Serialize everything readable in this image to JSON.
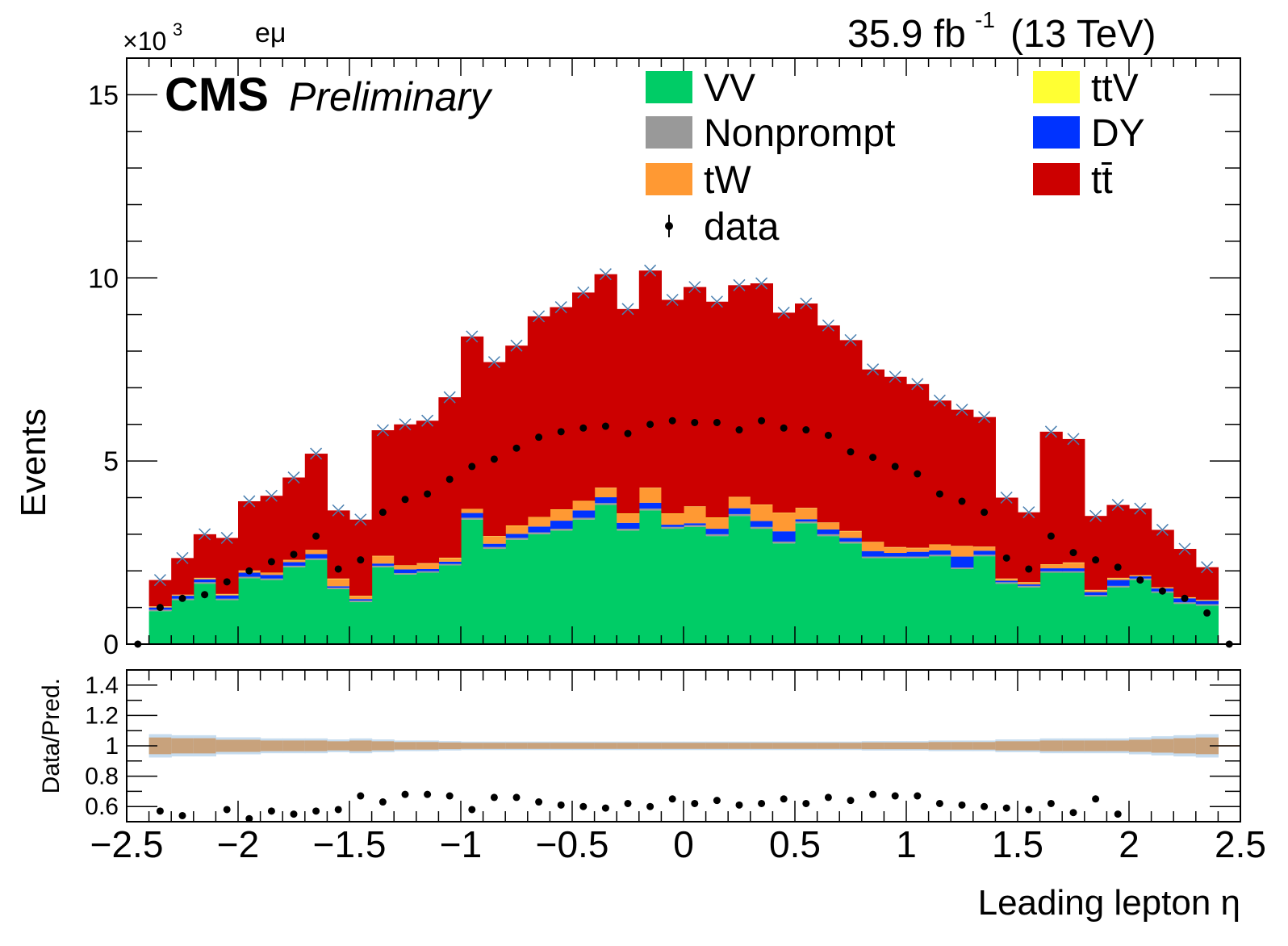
{
  "header": {
    "exponent_text": "×10",
    "exponent_power": "3",
    "channel": "eμ",
    "lumi": "35.9 fb",
    "lumi_power": "-1",
    "energy": "(13 TeV)",
    "cms": "CMS",
    "preliminary": "Preliminary"
  },
  "legend": [
    {
      "label": "VV",
      "color": "#00cc66",
      "kind": "box"
    },
    {
      "label": "ttV",
      "color": "#ffff33",
      "kind": "box"
    },
    {
      "label": "Nonprompt",
      "color": "#999999",
      "kind": "box"
    },
    {
      "label": "DY",
      "color": "#0033ff",
      "kind": "box"
    },
    {
      "label": "tW",
      "color": "#ff9933",
      "kind": "box"
    },
    {
      "label": "tt̄",
      "color": "#cc0000",
      "kind": "box"
    },
    {
      "label": "data",
      "color": "#000000",
      "kind": "marker"
    }
  ],
  "chart_data": [
    {
      "type": "bar",
      "stacked": true,
      "xlabel": "Leading lepton η",
      "ylabel": "Events",
      "y_scale_note": "×10^3",
      "xlim": [
        -2.5,
        2.5
      ],
      "ylim": [
        0,
        16
      ],
      "yticks": [
        0,
        5,
        10,
        15
      ],
      "xticks": [
        -2.5,
        -2,
        -1.5,
        -1,
        -0.5,
        0,
        0.5,
        1,
        1.5,
        2,
        2.5
      ],
      "xtick_labels": [
        "−2.5",
        "−2",
        "−1.5",
        "−1",
        "−0.5",
        "0",
        "0.5",
        "1",
        "1.5",
        "2",
        "2.5"
      ],
      "bin_edges": [
        -2.4,
        -2.3,
        -2.2,
        -2.1,
        -2.0,
        -1.9,
        -1.8,
        -1.7,
        -1.6,
        -1.5,
        -1.4,
        -1.3,
        -1.2,
        -1.1,
        -1.0,
        -0.9,
        -0.8,
        -0.7,
        -0.6,
        -0.5,
        -0.4,
        -0.3,
        -0.2,
        -0.1,
        0.0,
        0.1,
        0.2,
        0.3,
        0.4,
        0.5,
        0.6,
        0.7,
        0.8,
        0.9,
        1.0,
        1.1,
        1.2,
        1.3,
        1.4,
        1.5,
        1.6,
        1.7,
        1.8,
        1.9,
        2.0,
        2.1,
        2.2,
        2.3,
        2.4
      ],
      "series": [
        {
          "name": "VV",
          "color": "#00cc66",
          "values": [
            0.9,
            1.2,
            1.65,
            1.2,
            1.8,
            1.75,
            2.1,
            2.3,
            1.5,
            1.15,
            2.1,
            1.9,
            1.95,
            2.15,
            3.4,
            2.6,
            2.85,
            3.0,
            3.1,
            3.4,
            3.8,
            3.1,
            3.65,
            3.15,
            3.2,
            2.95,
            3.5,
            3.15,
            2.75,
            3.3,
            2.95,
            2.75,
            2.35,
            2.35,
            2.35,
            2.4,
            2.05,
            2.4,
            1.65,
            1.55,
            1.95,
            1.95,
            1.3,
            1.55,
            1.75,
            1.4,
            1.1,
            1.05
          ]
        },
        {
          "name": "Nonprompt",
          "color": "#999999",
          "values": [
            0.04,
            0.04,
            0.04,
            0.04,
            0.04,
            0.04,
            0.04,
            0.04,
            0.04,
            0.04,
            0.04,
            0.04,
            0.04,
            0.04,
            0.05,
            0.05,
            0.05,
            0.05,
            0.05,
            0.05,
            0.05,
            0.05,
            0.05,
            0.05,
            0.05,
            0.05,
            0.05,
            0.05,
            0.05,
            0.05,
            0.05,
            0.05,
            0.04,
            0.04,
            0.04,
            0.04,
            0.04,
            0.04,
            0.04,
            0.04,
            0.04,
            0.04,
            0.04,
            0.04,
            0.04,
            0.04,
            0.04,
            0.04
          ]
        },
        {
          "name": "DY",
          "color": "#0033ff",
          "values": [
            0.06,
            0.08,
            0.08,
            0.09,
            0.11,
            0.1,
            0.1,
            0.12,
            0.04,
            0.04,
            0.06,
            0.1,
            0.06,
            0.06,
            0.13,
            0.09,
            0.11,
            0.16,
            0.22,
            0.2,
            0.16,
            0.16,
            0.16,
            0.06,
            0.05,
            0.15,
            0.16,
            0.16,
            0.28,
            0.06,
            0.13,
            0.1,
            0.15,
            0.1,
            0.13,
            0.12,
            0.3,
            0.11,
            0.04,
            0.04,
            0.08,
            0.08,
            0.08,
            0.16,
            0.06,
            0.08,
            0.11,
            0.09
          ]
        },
        {
          "name": "tW",
          "color": "#ff9933",
          "values": [
            0.02,
            0.02,
            0.03,
            0.03,
            0.05,
            0.05,
            0.05,
            0.1,
            0.2,
            0.08,
            0.2,
            0.1,
            0.15,
            0.1,
            0.1,
            0.2,
            0.22,
            0.25,
            0.3,
            0.25,
            0.25,
            0.25,
            0.4,
            0.3,
            0.45,
            0.3,
            0.3,
            0.44,
            0.5,
            0.3,
            0.18,
            0.18,
            0.24,
            0.15,
            0.1,
            0.15,
            0.28,
            0.1,
            0.05,
            0.05,
            0.1,
            0.15,
            0.05,
            0.05,
            0.02,
            0.02,
            0.02,
            0.02
          ]
        },
        {
          "name": "ttV",
          "color": "#ffff33",
          "values": [
            0.01,
            0.01,
            0.01,
            0.01,
            0.01,
            0.01,
            0.01,
            0.01,
            0.01,
            0.01,
            0.01,
            0.01,
            0.01,
            0.01,
            0.01,
            0.01,
            0.01,
            0.01,
            0.01,
            0.01,
            0.01,
            0.01,
            0.01,
            0.01,
            0.01,
            0.01,
            0.01,
            0.01,
            0.01,
            0.01,
            0.01,
            0.01,
            0.01,
            0.01,
            0.01,
            0.01,
            0.01,
            0.01,
            0.01,
            0.01,
            0.01,
            0.01,
            0.01,
            0.01,
            0.01,
            0.01,
            0.01,
            0.01
          ]
        },
        {
          "name": "tt̄",
          "color": "#cc0000",
          "values": [
            0.72,
            1.0,
            1.19,
            1.53,
            1.89,
            2.1,
            2.25,
            2.63,
            1.86,
            2.08,
            3.43,
            3.85,
            3.89,
            4.38,
            4.71,
            4.75,
            4.91,
            5.48,
            5.52,
            5.69,
            5.83,
            5.58,
            5.93,
            5.83,
            5.99,
            5.89,
            5.78,
            6.04,
            5.46,
            5.58,
            5.38,
            5.21,
            4.71,
            4.65,
            4.47,
            3.93,
            3.72,
            3.54,
            2.21,
            1.91,
            3.62,
            3.37,
            2.02,
            1.99,
            1.82,
            1.57,
            1.32,
            0.89
          ]
        }
      ],
      "data_points": {
        "x": [
          -2.45,
          -2.35,
          -2.25,
          -2.15,
          -2.05,
          -1.95,
          -1.85,
          -1.75,
          -1.65,
          -1.55,
          -1.45,
          -1.35,
          -1.25,
          -1.15,
          -1.05,
          -0.95,
          -0.85,
          -0.75,
          -0.65,
          -0.55,
          -0.45,
          -0.35,
          -0.25,
          -0.15,
          -0.05,
          0.05,
          0.15,
          0.25,
          0.35,
          0.45,
          0.55,
          0.65,
          0.75,
          0.85,
          0.95,
          1.05,
          1.15,
          1.25,
          1.35,
          1.45,
          1.55,
          1.65,
          1.75,
          1.85,
          1.95,
          2.05,
          2.15,
          2.25,
          2.35,
          2.45
        ],
        "y": [
          0.0,
          1.0,
          1.25,
          1.35,
          1.7,
          2.0,
          2.25,
          2.45,
          2.95,
          2.05,
          2.3,
          3.6,
          3.95,
          4.1,
          4.5,
          4.85,
          5.05,
          5.35,
          5.65,
          5.8,
          5.9,
          5.95,
          5.75,
          6.0,
          6.1,
          6.05,
          6.05,
          5.85,
          6.1,
          5.9,
          5.85,
          5.7,
          5.25,
          5.1,
          4.85,
          4.65,
          4.1,
          3.9,
          3.6,
          2.35,
          2.05,
          2.95,
          2.5,
          2.3,
          2.1,
          1.75,
          1.45,
          1.25,
          0.85,
          0.0
        ]
      }
    },
    {
      "type": "scatter",
      "xlabel": "",
      "ylabel": "Data/Pred.",
      "xlim": [
        -2.5,
        2.5
      ],
      "ylim": [
        0.5,
        1.5
      ],
      "yticks": [
        0.6,
        0.8,
        1,
        1.2,
        1.4
      ],
      "ytick_labels": [
        "0.6",
        "0.8",
        "1",
        "1.2",
        "1.4"
      ],
      "band_center": 1.0,
      "band_halfwidth": [
        0.055,
        0.05,
        0.05,
        0.04,
        0.04,
        0.035,
        0.035,
        0.035,
        0.03,
        0.035,
        0.03,
        0.025,
        0.025,
        0.022,
        0.02,
        0.02,
        0.02,
        0.02,
        0.02,
        0.02,
        0.02,
        0.02,
        0.02,
        0.02,
        0.02,
        0.02,
        0.02,
        0.02,
        0.02,
        0.02,
        0.02,
        0.02,
        0.022,
        0.022,
        0.022,
        0.025,
        0.025,
        0.025,
        0.03,
        0.03,
        0.035,
        0.035,
        0.035,
        0.035,
        0.04,
        0.045,
        0.05,
        0.055
      ],
      "ratio_points": {
        "x": [
          -2.35,
          -2.25,
          -2.05,
          -1.95,
          -1.85,
          -1.75,
          -1.65,
          -1.55,
          -1.45,
          -1.35,
          -1.25,
          -1.15,
          -1.05,
          -0.95,
          -0.85,
          -0.75,
          -0.65,
          -0.55,
          -0.45,
          -0.35,
          -0.25,
          -0.15,
          -0.05,
          0.05,
          0.15,
          0.25,
          0.35,
          0.45,
          0.55,
          0.65,
          0.75,
          0.85,
          0.95,
          1.05,
          1.15,
          1.25,
          1.35,
          1.45,
          1.55,
          1.65,
          1.75,
          1.85,
          1.95,
          2.05
        ],
        "y": [
          0.57,
          0.54,
          0.58,
          0.52,
          0.57,
          0.55,
          0.57,
          0.58,
          0.67,
          0.63,
          0.68,
          0.68,
          0.67,
          0.58,
          0.66,
          0.66,
          0.63,
          0.61,
          0.6,
          0.59,
          0.62,
          0.6,
          0.65,
          0.62,
          0.64,
          0.61,
          0.62,
          0.65,
          0.62,
          0.66,
          0.64,
          0.68,
          0.67,
          0.67,
          0.62,
          0.61,
          0.6,
          0.59,
          0.58,
          0.62,
          0.56,
          0.65,
          0.55,
          0.5
        ]
      }
    }
  ]
}
